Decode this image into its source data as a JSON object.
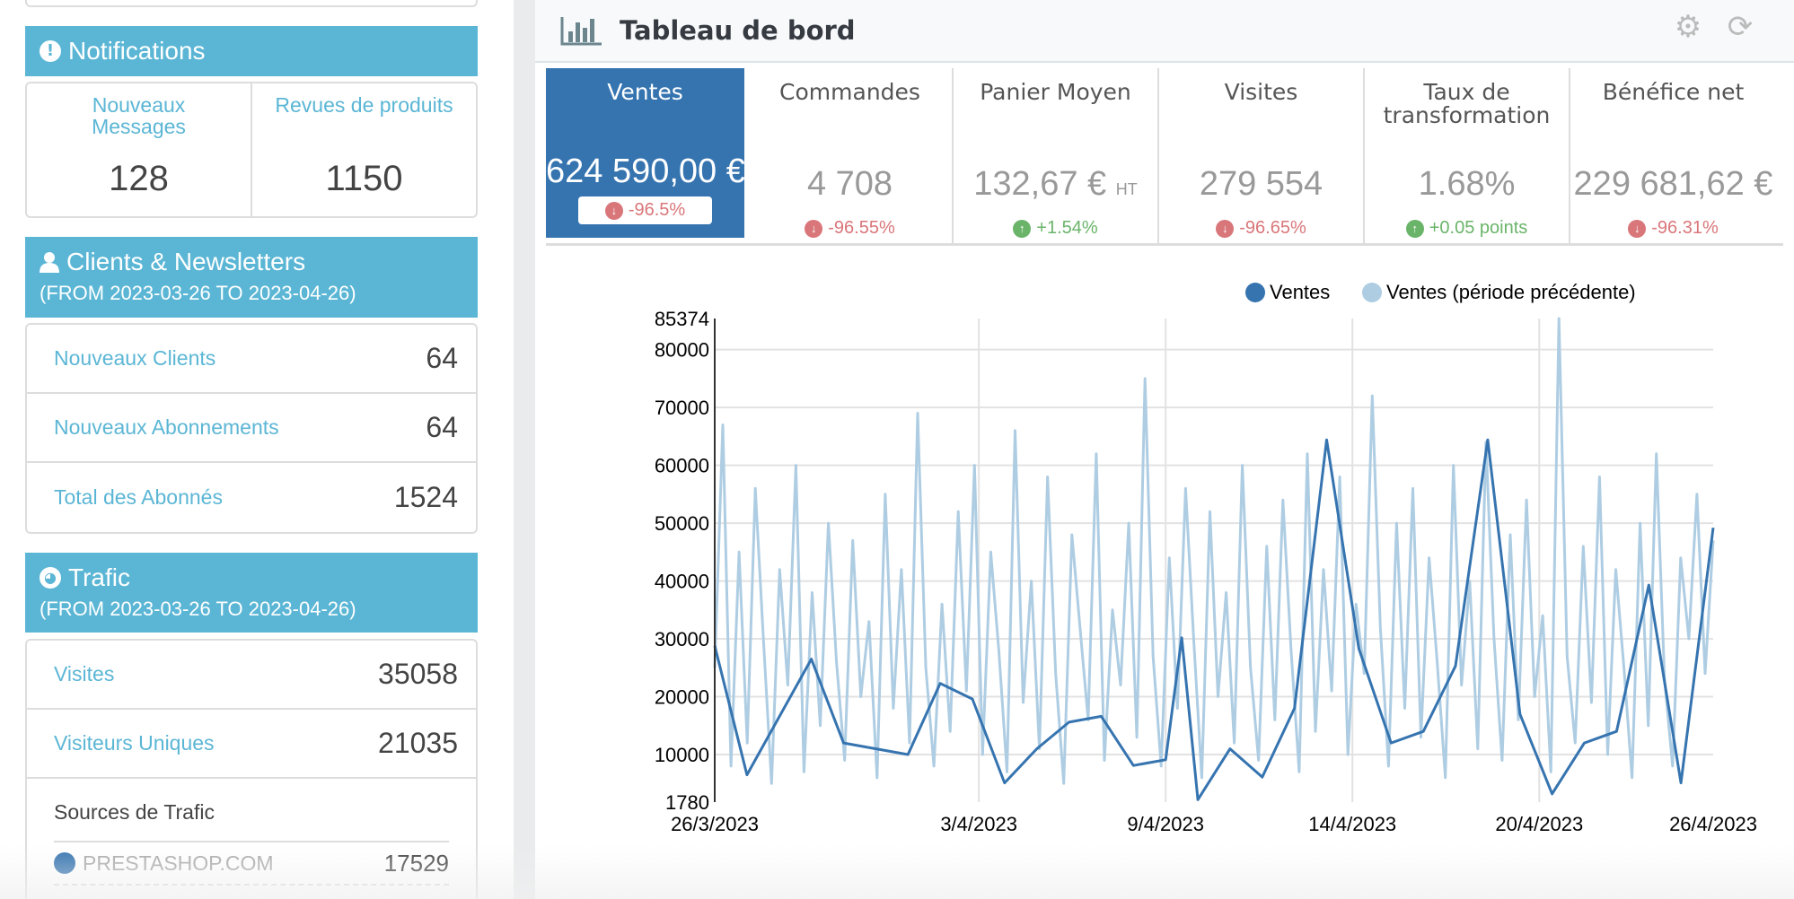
{
  "sidebar": {
    "notifications": {
      "title": "Notifications",
      "icon": "exclamation-circle-icon",
      "cells": [
        {
          "label": "Nouveaux Messages",
          "value": "128"
        },
        {
          "label": "Revues de produits",
          "value": "1150"
        }
      ]
    },
    "clients": {
      "title": "Clients & Newsletters",
      "icon": "user-icon",
      "subtitle": "(FROM 2023-03-26 TO 2023-04-26)",
      "rows": [
        {
          "label": "Nouveaux Clients",
          "value": "64"
        },
        {
          "label": "Nouveaux Abonnements",
          "value": "64"
        },
        {
          "label": "Total des Abonnés",
          "value": "1524"
        }
      ]
    },
    "traffic": {
      "title": "Trafic",
      "icon": "globe-icon",
      "subtitle": "(FROM 2023-03-26 TO 2023-04-26)",
      "rows": [
        {
          "label": "Visites",
          "value": "35058"
        },
        {
          "label": "Visiteurs Uniques",
          "value": "21035"
        }
      ],
      "sources_title": "Sources de Trafic",
      "sources": [
        {
          "name": "PRESTASHOP.COM",
          "value": "17529",
          "color": "#3674b0"
        }
      ]
    }
  },
  "main": {
    "title": "Tableau de bord",
    "icon": "bar-chart-icon",
    "tools": {
      "settings": "gear-icon",
      "refresh": "refresh-icon"
    },
    "kpis": [
      {
        "title": "Ventes",
        "value": "624 590,00 €",
        "delta": "-96.5%",
        "trend": "down",
        "active": true
      },
      {
        "title": "Commandes",
        "value": "4 708",
        "delta": "-96.55%",
        "trend": "down"
      },
      {
        "title": "Panier Moyen",
        "value": "132,67 €",
        "unit": "HT",
        "delta": "+1.54%",
        "trend": "up"
      },
      {
        "title": "Visites",
        "value": "279 554",
        "delta": "-96.65%",
        "trend": "down"
      },
      {
        "title": "Taux de transformation",
        "value": "1.68%",
        "delta": "+0.05 points",
        "trend": "up"
      },
      {
        "title": "Bénéfice net",
        "value": "229 681,62 €",
        "delta": "-96.31%",
        "trend": "down"
      }
    ],
    "colors": {
      "active_tab": "#3674b0",
      "negative": "#d9767a",
      "positive": "#6ab46a",
      "section_header": "#5bb6d5"
    }
  },
  "chart_data": {
    "type": "line",
    "title": "",
    "xlabel": "",
    "ylabel": "",
    "ylim": [
      1780,
      85374
    ],
    "yticks": [
      1780,
      10000,
      20000,
      30000,
      40000,
      50000,
      60000,
      70000,
      80000,
      85374
    ],
    "xticks": [
      "26/3/2023",
      "3/4/2023",
      "9/4/2023",
      "14/4/2023",
      "20/4/2023",
      "26/4/2023"
    ],
    "xtick_positions": [
      0,
      8.2,
      14.0,
      19.8,
      25.6,
      31
    ],
    "x_range": [
      0,
      31
    ],
    "grid": true,
    "legend": "top-right",
    "series": [
      {
        "name": "Ventes",
        "color": "#3674b0",
        "x": [
          0,
          1,
          3,
          4,
          6,
          7,
          8,
          9,
          10,
          11,
          12,
          13,
          14,
          14.5,
          15,
          16,
          17,
          18,
          19,
          20,
          21,
          22,
          23,
          24,
          25,
          26,
          27,
          28,
          29,
          30,
          31
        ],
        "values": [
          28800,
          6500,
          26500,
          12000,
          10000,
          22300,
          19600,
          5100,
          11000,
          15600,
          16600,
          8100,
          9100,
          30200,
          2200,
          11000,
          6100,
          18000,
          64400,
          28300,
          12000,
          14000,
          25300,
          64400,
          17000,
          3200,
          12000,
          14000,
          39300,
          5100,
          49200
        ]
      },
      {
        "name": "Ventes (période précédente)",
        "color": "#aecde3",
        "values": [
          25000,
          67000,
          8000,
          45000,
          12000,
          56000,
          30000,
          5000,
          42000,
          22000,
          60000,
          7000,
          38000,
          15000,
          50000,
          26000,
          9000,
          47000,
          20000,
          33000,
          6000,
          55000,
          18000,
          42000,
          12000,
          69000,
          25000,
          8000,
          36000,
          14000,
          52000,
          21000,
          60000,
          10000,
          45000,
          28000,
          7000,
          66000,
          19000,
          40000,
          11000,
          58000,
          24000,
          5000,
          48000,
          32000,
          16000,
          62000,
          9000,
          35000,
          22000,
          50000,
          13000,
          75000,
          27000,
          8000,
          44000,
          18000,
          56000,
          30000,
          6000,
          52000,
          20000,
          38000,
          12000,
          60000,
          25000,
          9000,
          46000,
          16000,
          54000,
          28000,
          7000,
          62000,
          14000,
          42000,
          21000,
          58000,
          10000,
          36000,
          24000,
          72000,
          32000,
          8000,
          50000,
          18000,
          56000,
          13000,
          44000,
          26000,
          6000,
          60000,
          22000,
          40000,
          11000,
          64000,
          30000,
          9000,
          48000,
          16000,
          54000,
          20000,
          34000,
          7000,
          85374,
          27000,
          12000,
          46000,
          19000,
          58000,
          10000,
          42000,
          25000,
          6000,
          50000,
          15000,
          62000,
          23000,
          8000,
          44000,
          30000,
          55000,
          24000,
          47000
        ]
      }
    ]
  }
}
